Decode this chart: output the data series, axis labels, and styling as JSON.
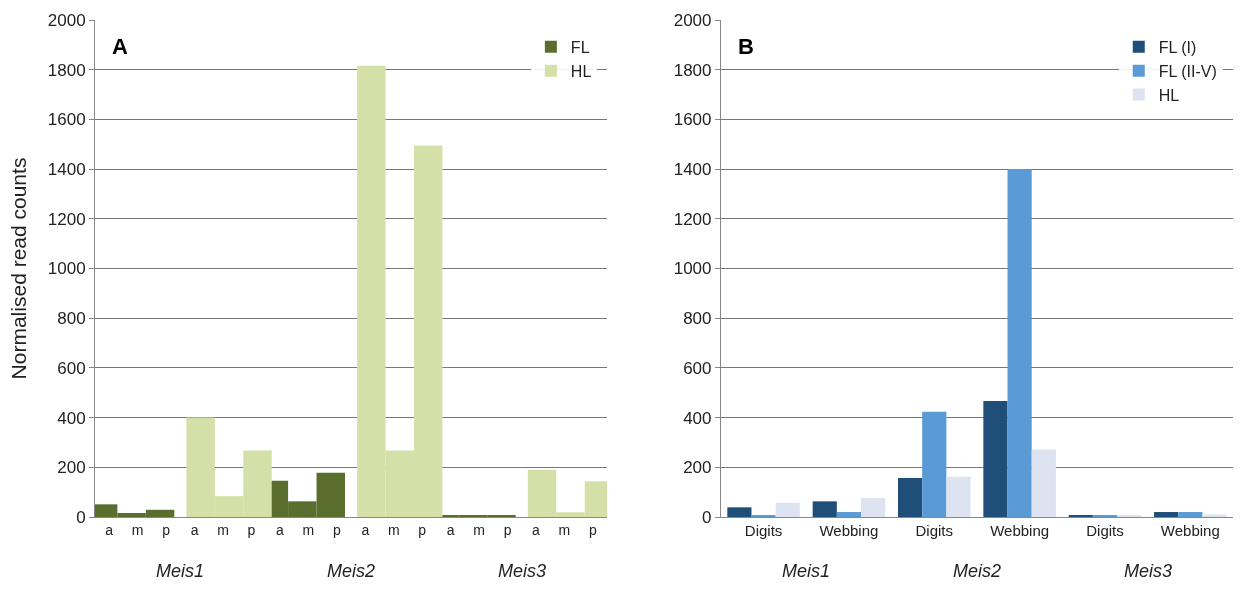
{
  "chart_data": [
    {
      "type": "bar",
      "ylabel": "Normalised read counts",
      "annotations": [
        "A",
        "Meis1",
        "Meis2",
        "Meis3"
      ],
      "categories": [
        "a",
        "m",
        "p",
        "a",
        "m",
        "p",
        "a",
        "m",
        "p",
        "a",
        "m",
        "p",
        "a",
        "m",
        "p",
        "a",
        "m",
        "p"
      ],
      "series": [
        {
          "name": "FL",
          "color": "#5a6e2e",
          "values": [
            51,
            16,
            29,
            null,
            null,
            null,
            146,
            63,
            178,
            null,
            null,
            null,
            5,
            5,
            5,
            null,
            null,
            null
          ]
        },
        {
          "name": "HL",
          "color": "#d4e0a8",
          "values": [
            null,
            null,
            null,
            400,
            84,
            268,
            null,
            null,
            null,
            1816,
            268,
            1495,
            null,
            null,
            null,
            190,
            19,
            144
          ]
        }
      ],
      "ylim": [
        0,
        2000
      ],
      "yticks": [
        0,
        200,
        400,
        600,
        800,
        1000,
        1200,
        1400,
        1600,
        1800,
        2000
      ],
      "grid": "y",
      "legend": "top right"
    },
    {
      "type": "bar",
      "annotations": [
        "B",
        "Meis1",
        "Meis2",
        "Meis3"
      ],
      "categories": [
        "Digits",
        "Webbing",
        "Digits",
        "Webbing",
        "Digits",
        "Webbing"
      ],
      "series": [
        {
          "name": "FL (I)",
          "color": "#1f4e79",
          "values": [
            39,
            63,
            157,
            467,
            8,
            20
          ]
        },
        {
          "name": "FL (II-V)",
          "color": "#5b9bd5",
          "values": [
            5,
            20,
            424,
            1400,
            6,
            20
          ]
        },
        {
          "name": "HL",
          "color": "#dde3f0",
          "values": [
            57,
            76,
            162,
            272,
            6,
            10
          ]
        }
      ],
      "ylim": [
        0,
        2000
      ],
      "yticks": [
        0,
        200,
        400,
        600,
        800,
        1000,
        1200,
        1400,
        1600,
        1800,
        2000
      ],
      "grid": "y",
      "legend": "top right"
    }
  ]
}
